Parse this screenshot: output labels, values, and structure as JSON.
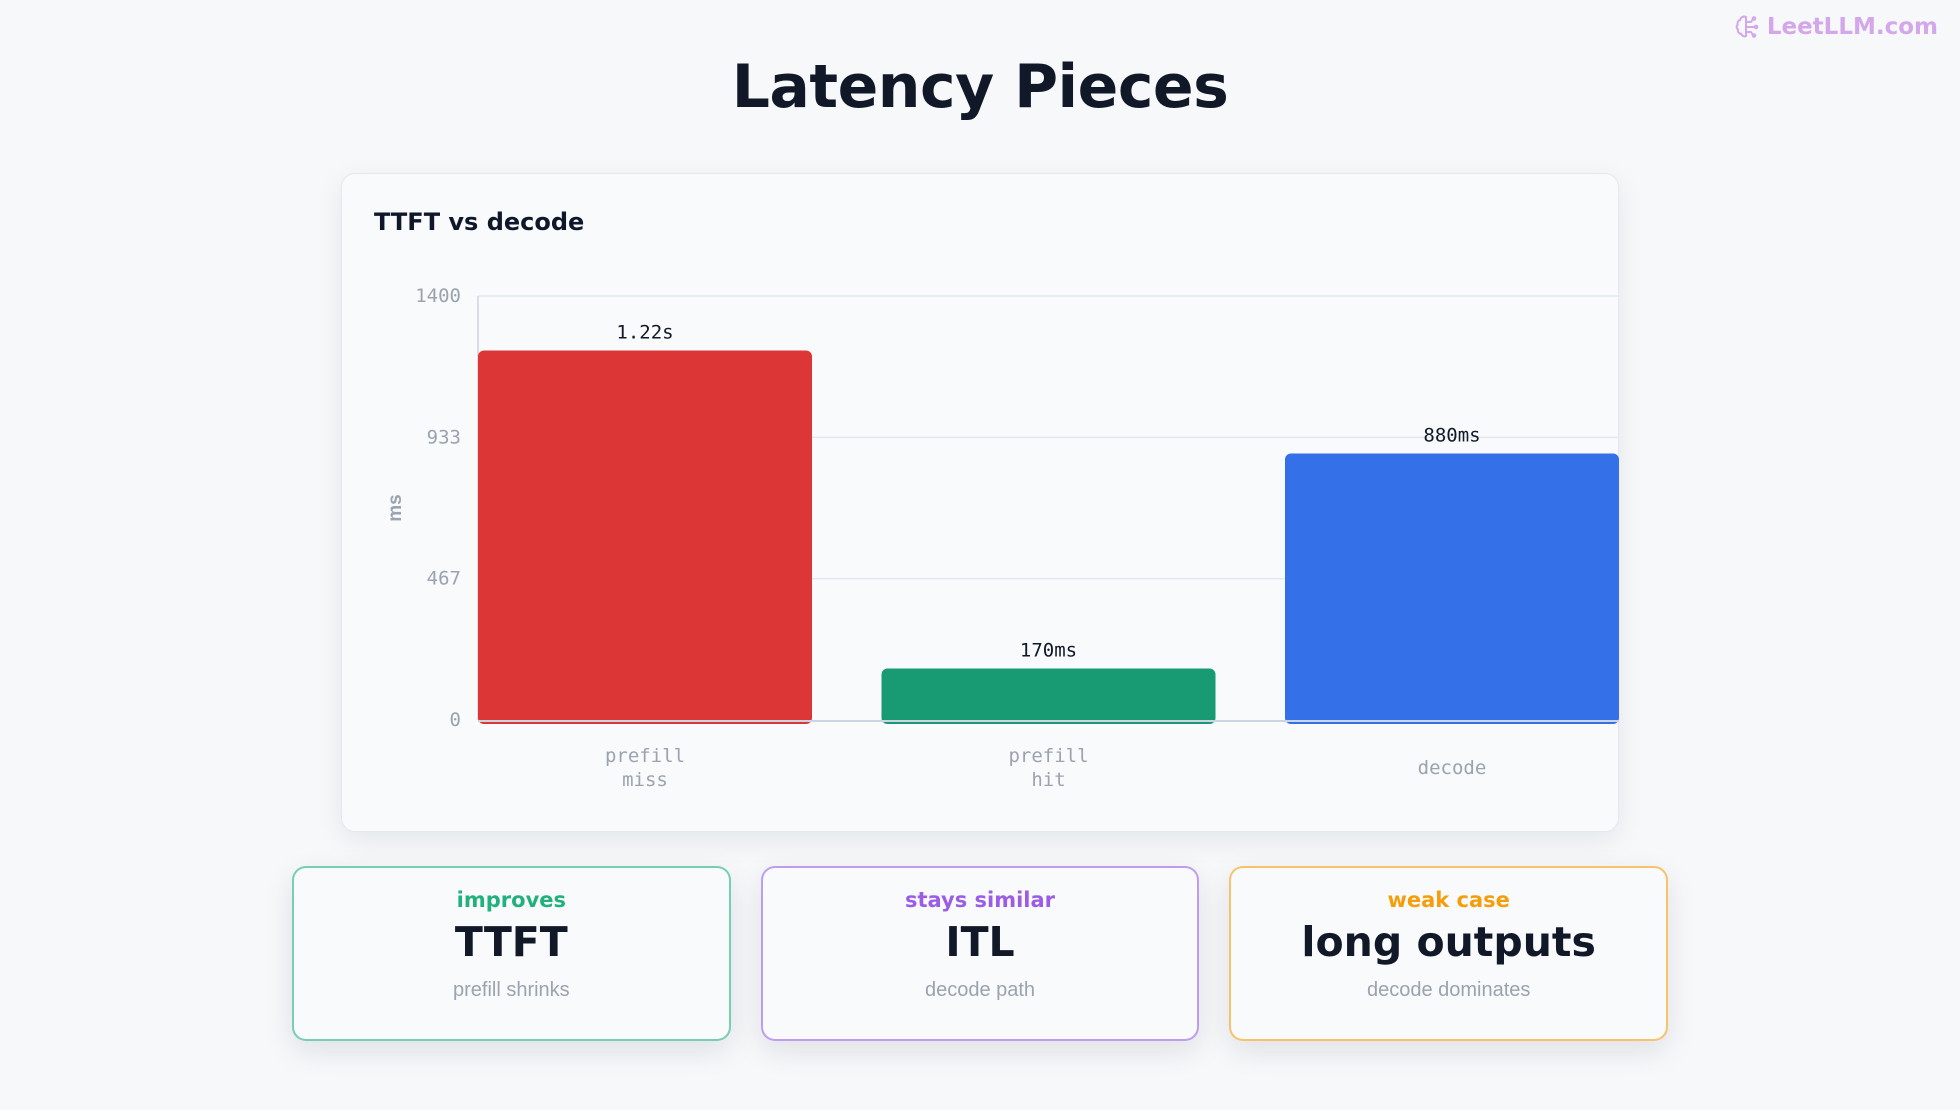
{
  "brand": {
    "name": "LeetLLM.com",
    "icon": "brain-icon",
    "color": "#d4a7ec"
  },
  "title": "Latency Pieces",
  "chart_data": {
    "type": "bar",
    "title": "TTFT vs decode",
    "ylabel": "ms",
    "xlabel": "",
    "ylim": [
      0,
      1400
    ],
    "yticks": [
      0,
      467,
      933,
      1400
    ],
    "grid": true,
    "categories": [
      [
        "prefill",
        "miss"
      ],
      [
        "prefill",
        "hit"
      ],
      [
        "decode"
      ]
    ],
    "values": [
      1220,
      170,
      880
    ],
    "value_labels": [
      "1.22s",
      "170ms",
      "880ms"
    ],
    "colors": [
      "#dc3636",
      "#189b73",
      "#3470e8"
    ]
  },
  "stats": [
    {
      "eyebrow": "improves",
      "value": "TTFT",
      "caption": "prefill shrinks",
      "color": "#22b07d"
    },
    {
      "eyebrow": "stays similar",
      "value": "ITL",
      "caption": "decode path",
      "color": "#9b5de5"
    },
    {
      "eyebrow": "weak case",
      "value": "long outputs",
      "caption": "decode dominates",
      "color": "#f59e0b"
    }
  ]
}
